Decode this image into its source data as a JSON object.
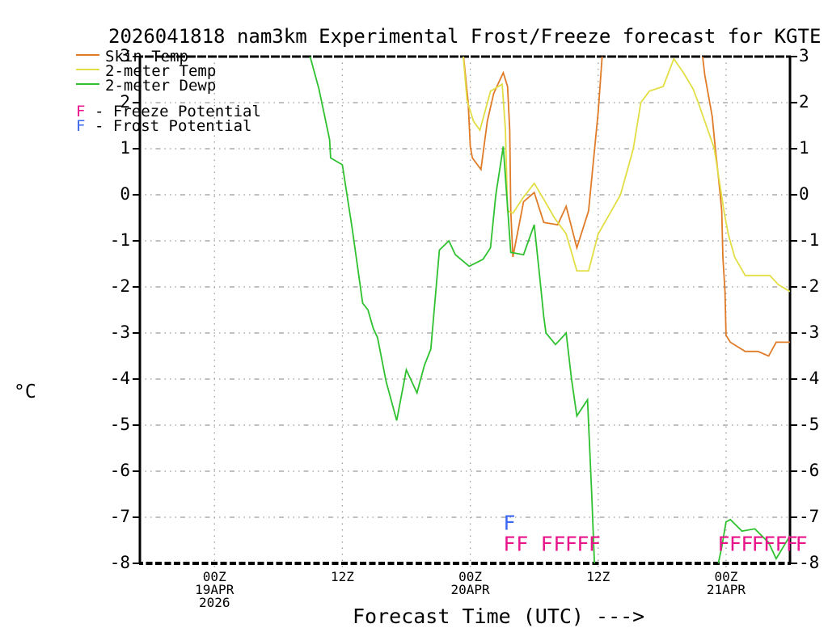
{
  "title": "2026041818 nam3km Experimental Frost/Freeze forecast for KGTE",
  "y_axis_unit": "°C",
  "x_axis_label": "Forecast Time (UTC) --->",
  "colors": {
    "skin_temp": "#e07b28",
    "two_meter_temp": "#e2de45",
    "two_meter_dewp": "#2fc12f",
    "freeze_potential": "#e8148c",
    "frost_potential": "#3a66f0",
    "grid": "#9a9a9a",
    "axis": "#000000"
  },
  "legend": {
    "series": [
      {
        "label": "Skin Temp",
        "color": "#e07b28"
      },
      {
        "label": "2-meter Temp",
        "color": "#e2de45"
      },
      {
        "label": "2-meter Dewp",
        "color": "#2fc12f"
      }
    ],
    "potentials": [
      {
        "marker": "F",
        "color": "#e8148c",
        "label": "- Freeze Potential"
      },
      {
        "marker": "F",
        "color": "#3a66f0",
        "label": "- Frost Potential"
      }
    ]
  },
  "chart_data": {
    "type": "line",
    "title": "2026041818 nam3km Experimental Frost/Freeze forecast for KGTE",
    "xlabel": "Forecast Time (UTC) --->",
    "ylabel": "°C",
    "ylim": [
      -8,
      3
    ],
    "y_ticks": [
      3,
      2,
      1,
      0,
      -1,
      -2,
      -3,
      -4,
      -5,
      -6,
      -7,
      -8
    ],
    "x_hours_range": [
      0,
      61
    ],
    "x_ticks": [
      {
        "hour": 7,
        "lines": [
          "00Z",
          "19APR",
          "2026"
        ]
      },
      {
        "hour": 19,
        "lines": [
          "12Z"
        ]
      },
      {
        "hour": 31,
        "lines": [
          "00Z",
          "20APR"
        ]
      },
      {
        "hour": 43,
        "lines": [
          "12Z"
        ]
      },
      {
        "hour": 55,
        "lines": [
          "00Z",
          "21APR"
        ]
      }
    ],
    "grid": true,
    "legend_position": "top-left",
    "series": [
      {
        "name": "Skin Temp",
        "color": "#e07b28",
        "points": [
          [
            30.2,
            3.4
          ],
          [
            30.8,
            2.0
          ],
          [
            31.0,
            1.05
          ],
          [
            31.2,
            0.8
          ],
          [
            32.0,
            0.55
          ],
          [
            32.6,
            1.6
          ],
          [
            33.2,
            2.2
          ],
          [
            33.5,
            2.35
          ],
          [
            34.1,
            2.65
          ],
          [
            34.5,
            2.35
          ],
          [
            34.7,
            1.4
          ],
          [
            34.8,
            -0.35
          ],
          [
            35.0,
            -1.35
          ],
          [
            36.0,
            -0.15
          ],
          [
            37.0,
            0.05
          ],
          [
            37.9,
            -0.6
          ],
          [
            39.2,
            -0.65
          ],
          [
            40.0,
            -0.25
          ],
          [
            41.0,
            -1.15
          ],
          [
            42.1,
            -0.35
          ],
          [
            43.0,
            1.8
          ],
          [
            43.5,
            3.4
          ],
          [
            52.6,
            3.4
          ],
          [
            53.0,
            2.6
          ],
          [
            53.7,
            1.7
          ],
          [
            54.0,
            1.0
          ],
          [
            54.3,
            0.35
          ],
          [
            54.6,
            -0.35
          ],
          [
            54.7,
            -1.35
          ],
          [
            54.9,
            -2.1
          ],
          [
            55.0,
            -3.05
          ],
          [
            55.4,
            -3.2
          ],
          [
            56.1,
            -3.3
          ],
          [
            56.8,
            -3.4
          ],
          [
            58.0,
            -3.4
          ],
          [
            59.0,
            -3.5
          ],
          [
            59.7,
            -3.2
          ],
          [
            61.0,
            -3.2
          ]
        ]
      },
      {
        "name": "2-meter Temp",
        "color": "#e2de45",
        "points": [
          [
            30.2,
            3.4
          ],
          [
            30.7,
            2.05
          ],
          [
            31.3,
            1.6
          ],
          [
            31.9,
            1.4
          ],
          [
            32.9,
            2.25
          ],
          [
            34.0,
            2.4
          ],
          [
            34.3,
            1.4
          ],
          [
            34.5,
            -0.35
          ],
          [
            35.0,
            -0.4
          ],
          [
            36.0,
            -0.05
          ],
          [
            37.0,
            0.25
          ],
          [
            37.9,
            -0.1
          ],
          [
            38.9,
            -0.5
          ],
          [
            40.0,
            -0.85
          ],
          [
            41.0,
            -1.65
          ],
          [
            42.1,
            -1.65
          ],
          [
            43.0,
            -0.85
          ],
          [
            44.0,
            -0.45
          ],
          [
            45.1,
            0.0
          ],
          [
            46.3,
            1.0
          ],
          [
            47.0,
            2.0
          ],
          [
            47.8,
            2.25
          ],
          [
            49.1,
            2.35
          ],
          [
            50.1,
            2.95
          ],
          [
            51.0,
            2.65
          ],
          [
            51.9,
            2.3
          ],
          [
            52.4,
            2.0
          ],
          [
            53.9,
            1.0
          ],
          [
            54.8,
            -0.35
          ],
          [
            55.2,
            -0.85
          ],
          [
            55.8,
            -1.35
          ],
          [
            56.8,
            -1.75
          ],
          [
            59.1,
            -1.75
          ],
          [
            59.9,
            -1.95
          ],
          [
            61.0,
            -2.1
          ]
        ]
      },
      {
        "name": "2-meter Dewp",
        "color": "#2fc12f",
        "points": [
          [
            15.5,
            3.4
          ],
          [
            16.8,
            2.3
          ],
          [
            17.8,
            1.2
          ],
          [
            17.9,
            0.8
          ],
          [
            19.0,
            0.65
          ],
          [
            19.9,
            -0.7
          ],
          [
            20.9,
            -2.35
          ],
          [
            21.4,
            -2.5
          ],
          [
            21.9,
            -2.9
          ],
          [
            22.3,
            -3.1
          ],
          [
            23.1,
            -4.05
          ],
          [
            24.1,
            -4.9
          ],
          [
            25.0,
            -3.8
          ],
          [
            26.0,
            -4.3
          ],
          [
            26.7,
            -3.7
          ],
          [
            27.3,
            -3.35
          ],
          [
            28.1,
            -1.2
          ],
          [
            29.0,
            -1.0
          ],
          [
            29.6,
            -1.3
          ],
          [
            30.9,
            -1.55
          ],
          [
            32.2,
            -1.4
          ],
          [
            32.9,
            -1.15
          ],
          [
            33.4,
            0.0
          ],
          [
            34.1,
            1.05
          ],
          [
            34.8,
            -1.25
          ],
          [
            36.0,
            -1.3
          ],
          [
            37.0,
            -0.65
          ],
          [
            37.5,
            -1.75
          ],
          [
            37.9,
            -2.65
          ],
          [
            38.1,
            -3.0
          ],
          [
            39.0,
            -3.25
          ],
          [
            40.0,
            -3.0
          ],
          [
            40.5,
            -4.0
          ],
          [
            41.0,
            -4.8
          ],
          [
            42.0,
            -4.45
          ],
          [
            42.4,
            -6.5
          ],
          [
            42.7,
            -8.3
          ],
          [
            54.0,
            -8.3
          ],
          [
            54.6,
            -7.65
          ],
          [
            55.0,
            -7.1
          ],
          [
            55.4,
            -7.05
          ],
          [
            56.5,
            -7.3
          ],
          [
            57.7,
            -7.25
          ],
          [
            59.0,
            -7.55
          ],
          [
            59.7,
            -7.9
          ],
          [
            61.0,
            -7.4
          ]
        ]
      }
    ],
    "freeze_markers": {
      "symbol": "F",
      "color": "#e8148c",
      "value": -7.55,
      "hours": [
        34.1,
        35.3,
        37.6,
        38.8,
        39.9,
        41.0,
        42.1,
        54.2,
        55.3,
        56.4,
        57.4,
        58.5,
        59.6,
        60.6,
        61.5
      ]
    },
    "frost_markers": {
      "symbol": "F",
      "color": "#3a66f0",
      "value": -7.1,
      "hours": [
        34.1
      ]
    }
  }
}
